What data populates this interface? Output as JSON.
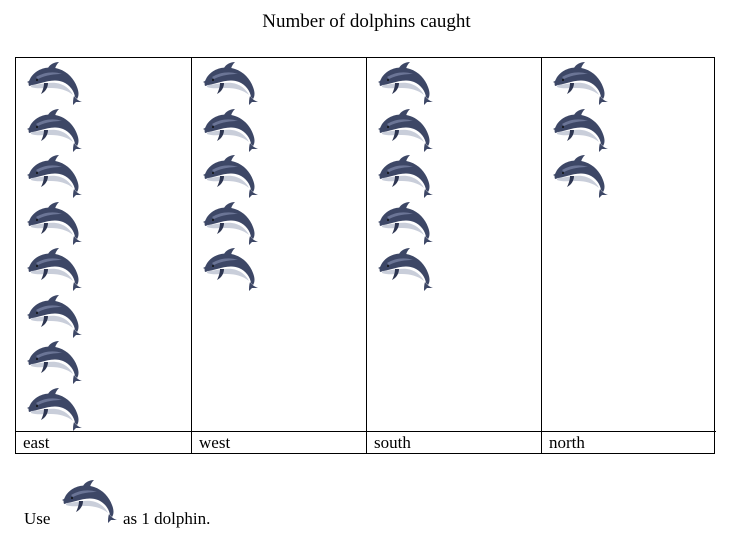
{
  "chart_data": {
    "type": "pictograph",
    "title": "Number of dolphins caught",
    "categories": [
      "east",
      "west",
      "south",
      "north"
    ],
    "values": [
      8,
      5,
      5,
      3
    ],
    "icon": "dolphin-icon",
    "key": {
      "prefix": "Use",
      "suffix": "as 1 dolphin.",
      "unit_value": 1
    }
  },
  "colors": {
    "dolphin_dark": "#3d4766",
    "dolphin_mid": "#6b7596",
    "dolphin_light": "#c9ceda"
  }
}
